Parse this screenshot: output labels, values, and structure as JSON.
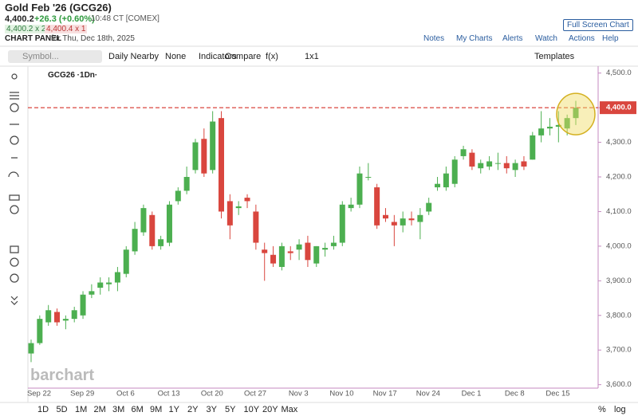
{
  "header": {
    "title": "Gold Feb '26 (GCG26)",
    "price": "4,400.2",
    "change": "+26.3 (+0.60%)",
    "time": "10:48 CT [COMEX]",
    "bid": "4,400.2 x 2",
    "ask": "4,400.4 x 1",
    "panel": "CHART PANEL",
    "date": "for Thu, Dec 18th, 2025",
    "fullscreen": "Full Screen Chart",
    "links": [
      "Notes",
      "My Charts",
      "Alerts",
      "Watch",
      "Actions",
      "Help"
    ]
  },
  "toolbar": {
    "symbol": "Symbol...",
    "items": [
      "Daily Nearby",
      "None",
      "Indicators",
      "Compare",
      "f(x)",
      "1x1"
    ],
    "templates": "Templates"
  },
  "legend": "GCG26 ·1Dn·",
  "watermark": "barchart",
  "ranges": [
    "1D",
    "5D",
    "1M",
    "2M",
    "3M",
    "6M",
    "9M",
    "1Y",
    "2Y",
    "3Y",
    "5Y",
    "10Y",
    "20Y",
    "Max"
  ],
  "scale_buttons": [
    "%",
    "log"
  ],
  "chart_data": {
    "type": "candlestick",
    "up_color": "#4caf50",
    "down_color": "#d9463e",
    "categories": [
      "Sep 22",
      null,
      null,
      null,
      null,
      "Sep 29",
      null,
      null,
      null,
      null,
      "Oct 6",
      null,
      null,
      null,
      null,
      "Oct 13",
      null,
      null,
      null,
      null,
      "Oct 20",
      null,
      null,
      null,
      null,
      "Oct 27",
      null,
      null,
      null,
      null,
      "Nov 3",
      null,
      null,
      null,
      null,
      "Nov 10",
      null,
      null,
      null,
      null,
      "Nov 17",
      null,
      null,
      null,
      null,
      "Nov 24",
      null,
      null,
      null,
      null,
      "Dec 1",
      null,
      null,
      null,
      null,
      "Dec 8",
      null,
      null,
      null,
      null,
      "Dec 15",
      null,
      null,
      null
    ],
    "open": [
      3690,
      3720,
      3780,
      3810,
      3785,
      3790,
      3800,
      3860,
      3880,
      3890,
      3895,
      3920,
      3985,
      4040,
      4090,
      4000,
      4010,
      4130,
      4160,
      4220,
      4310,
      4220,
      4370,
      4130,
      4110,
      4140,
      4100,
      3990,
      3975,
      3940,
      3985,
      3990,
      4010,
      3950,
      3990,
      4000,
      4010,
      4110,
      4120,
      4200,
      4170,
      4090,
      4070,
      4060,
      4080,
      4070,
      4100,
      4170,
      4170,
      4180,
      4260,
      4270,
      4225,
      4230,
      4240,
      4240,
      4220,
      4245,
      4250,
      4320,
      4340,
      4345,
      4340,
      4370
    ],
    "high": [
      3730,
      3800,
      3830,
      3820,
      3800,
      3825,
      3870,
      3890,
      3910,
      3910,
      3940,
      4000,
      4070,
      4120,
      4100,
      4030,
      4130,
      4170,
      4230,
      4310,
      4340,
      4390,
      4390,
      4150,
      4130,
      4150,
      4120,
      4010,
      4000,
      4010,
      4000,
      4020,
      4030,
      4000,
      4010,
      4030,
      4130,
      4140,
      4230,
      4240,
      4180,
      4110,
      4090,
      4100,
      4100,
      4110,
      4140,
      4200,
      4230,
      4260,
      4290,
      4280,
      4250,
      4260,
      4270,
      4260,
      4250,
      4260,
      4330,
      4390,
      4370,
      4390,
      4380,
      4420
    ],
    "low": [
      3665,
      3715,
      3770,
      3770,
      3760,
      3780,
      3790,
      3850,
      3860,
      3870,
      3870,
      3910,
      3975,
      4030,
      3990,
      3990,
      4000,
      4120,
      4150,
      4210,
      4200,
      4210,
      4080,
      4020,
      4090,
      4110,
      3990,
      3900,
      3940,
      3930,
      3960,
      3960,
      3940,
      3940,
      3970,
      3990,
      4000,
      4100,
      4110,
      4190,
      4050,
      4070,
      4000,
      4040,
      4060,
      4020,
      4090,
      4160,
      4160,
      4170,
      4250,
      4220,
      4210,
      4220,
      4220,
      4210,
      4200,
      4220,
      4250,
      4300,
      4320,
      4300,
      4320,
      4350
    ],
    "close": [
      3720,
      3790,
      3815,
      3780,
      3790,
      3815,
      3860,
      3870,
      3895,
      3895,
      3925,
      3990,
      4050,
      4110,
      4000,
      4020,
      4120,
      4160,
      4200,
      4300,
      4210,
      4360,
      4100,
      4060,
      4115,
      4130,
      4010,
      3980,
      3950,
      4000,
      3980,
      4005,
      3960,
      4000,
      3995,
      4010,
      4120,
      4120,
      4210,
      4200,
      4060,
      4080,
      4060,
      4080,
      4075,
      4090,
      4125,
      4180,
      4210,
      4250,
      4280,
      4230,
      4240,
      4245,
      4240,
      4225,
      4240,
      4230,
      4320,
      4340,
      4345,
      4350,
      4370,
      4400
    ],
    "ylim": [
      3590,
      4520
    ],
    "yticks": [
      {
        "value": 3600,
        "label": "3,600.0"
      },
      {
        "value": 3700,
        "label": "3,700.0"
      },
      {
        "value": 3800,
        "label": "3,800.0"
      },
      {
        "value": 3900,
        "label": "3,900.0"
      },
      {
        "value": 4000,
        "label": "4,000.0"
      },
      {
        "value": 4100,
        "label": "4,100.0"
      },
      {
        "value": 4200,
        "label": "4,200.0"
      },
      {
        "value": 4300,
        "label": "4,300.0"
      },
      {
        "value": 4400,
        "label": "4,400.0"
      },
      {
        "value": 4500,
        "label": "4,500.0"
      }
    ],
    "last_price": {
      "value": 4400,
      "label": "4,400.0"
    }
  }
}
